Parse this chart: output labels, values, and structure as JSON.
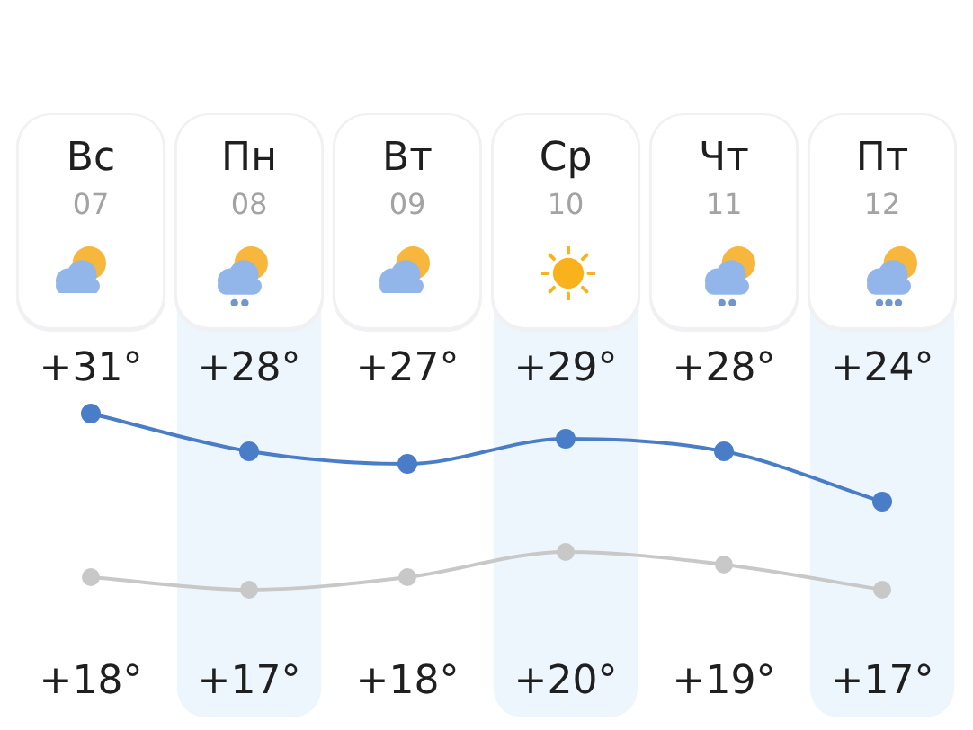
{
  "chart_data": {
    "type": "line",
    "categories": [
      "Вс\n07",
      "Пн\n08",
      "Вт\n09",
      "Ср\n10",
      "Чт\n11",
      "Пт\n12"
    ],
    "series": [
      {
        "color": "#4a7dc8",
        "values": [
          31,
          28,
          27,
          29,
          28,
          24
        ],
        "value_labels": [
          "+31°",
          "+28°",
          "+27°",
          "+29°",
          "+28°",
          "+24°"
        ]
      },
      {
        "color": "#c8c8c8",
        "values": [
          18,
          17,
          18,
          20,
          19,
          17
        ],
        "value_labels": [
          "+18°",
          "+17°",
          "+18°",
          "+20°",
          "+19°",
          "+17°"
        ]
      }
    ],
    "bands": [
      {
        "axis": "x",
        "from": "Пн\n08",
        "to": "Пн\n08",
        "color": "#eef6fd"
      },
      {
        "axis": "x",
        "from": "Ср\n10",
        "to": "Ср\n10",
        "color": "#eef6fd"
      },
      {
        "axis": "x",
        "from": "Пт\n12",
        "to": "Пт\n12",
        "color": "#eef6fd"
      }
    ],
    "marker": "circle",
    "tick_labels": "x"
  }
}
